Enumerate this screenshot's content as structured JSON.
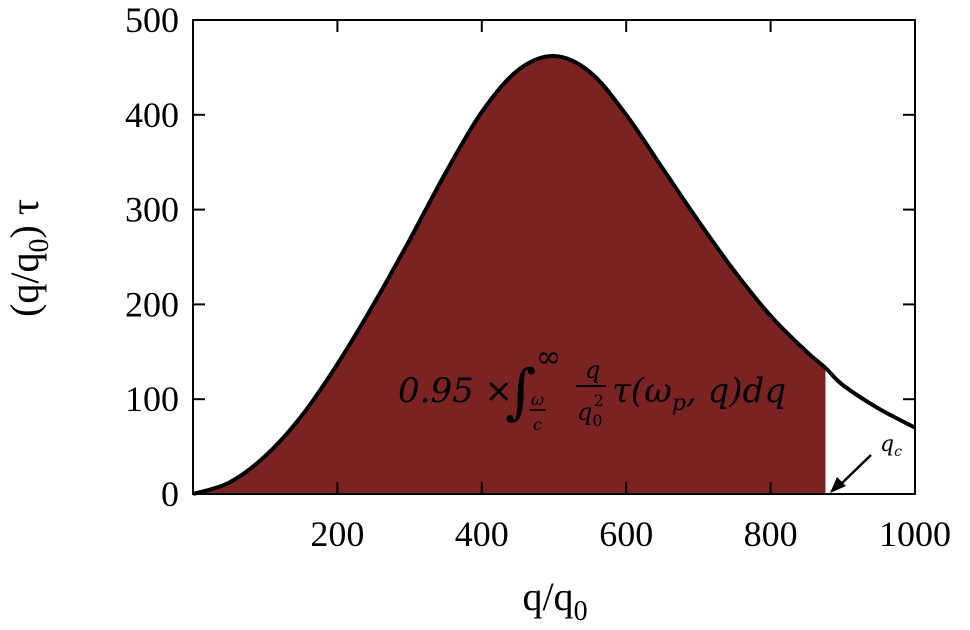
{
  "chart_data": {
    "type": "area",
    "xlabel": "q/q",
    "xlabel_sub": "0",
    "ylabel": "(q/q",
    "ylabel_sub": "0",
    "ylabel_tail": ") τ",
    "xlim": [
      0,
      1000
    ],
    "ylim": [
      0,
      500
    ],
    "x_ticks": [
      200,
      400,
      600,
      800,
      1000
    ],
    "y_ticks": [
      0,
      100,
      200,
      300,
      400,
      500
    ],
    "grid": false,
    "legend": "none",
    "fill_color": "#7b2222",
    "curve_color": "#000000",
    "fill_until_x": 876,
    "series": [
      {
        "x": [
          0,
          50,
          100,
          150,
          200,
          250,
          300,
          350,
          400,
          450,
          500,
          550,
          600,
          650,
          700,
          750,
          800,
          850,
          876,
          900,
          950,
          1000
        ],
        "y": [
          0,
          12,
          40,
          82,
          137,
          200,
          268,
          339,
          403,
          447,
          462,
          445,
          400,
          344,
          288,
          235,
          188,
          150,
          133,
          115,
          90,
          70
        ]
      }
    ],
    "annotations": [
      {
        "text_prefix": "0.95 ×",
        "integral_lower_num": "ω",
        "integral_lower_den": "c",
        "integral_upper": "∞",
        "frac_num": "q",
        "frac_den": "q",
        "frac_den_sub": "0",
        "frac_den_sup": "2",
        "text_tail": "τ(ω",
        "text_tail_sub": "p",
        "text_tail_end": ", q)dq"
      },
      {
        "text": "q",
        "sub": "c",
        "arrow_to_x": 876,
        "arrow_to_y": 0
      }
    ]
  }
}
